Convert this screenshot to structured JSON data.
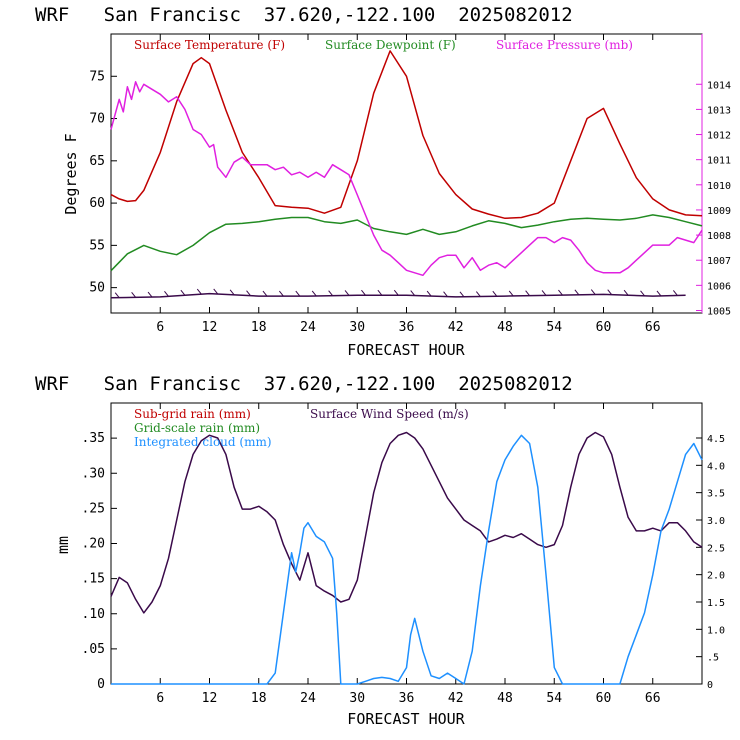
{
  "charts": [
    {
      "title": "WRF   San Francisc  37.620,-122.100  2025082012",
      "xlabel": "FORECAST HOUR",
      "ylabel": "Degrees F",
      "legend": [
        {
          "label": "Surface Temperature (F)",
          "color": "#c00000"
        },
        {
          "label": "Surface Dewpoint (F)",
          "color": "#228b22"
        },
        {
          "label": "Surface Pressure (mb)",
          "color": "#e020e0"
        }
      ]
    },
    {
      "title": "WRF   San Francisc  37.620,-122.100  2025082012",
      "xlabel": "FORECAST HOUR",
      "ylabel": "mm",
      "legend": [
        {
          "label": "Sub-grid rain (mm)",
          "color": "#c00000"
        },
        {
          "label": "Surface Wind Speed (m/s)",
          "color": "#3a0a4a"
        },
        {
          "label": "Grid-scale rain (mm)",
          "color": "#228b22"
        },
        {
          "label": "Integrated cloud (mm)",
          "color": "#1e90ff"
        }
      ]
    }
  ],
  "chart_data": [
    {
      "type": "line",
      "xlim": [
        0,
        72
      ],
      "ylim": [
        47,
        80
      ],
      "y2lim": [
        1004.9,
        1016
      ],
      "x_ticks": [
        6,
        12,
        18,
        24,
        30,
        36,
        42,
        48,
        54,
        60,
        66
      ],
      "y_ticks": [
        50,
        55,
        60,
        65,
        70,
        75
      ],
      "y2_ticks": [
        1005,
        1006,
        1007,
        1008,
        1009,
        1010,
        1011,
        1012,
        1013,
        1014
      ],
      "series": [
        {
          "name": "Surface Temperature (F)",
          "color": "#c00000",
          "axis": "left",
          "x": [
            0,
            1,
            2,
            3,
            4,
            6,
            8,
            10,
            11,
            12,
            14,
            16,
            18,
            20,
            22,
            24,
            26,
            28,
            30,
            32,
            34,
            36,
            38,
            40,
            42,
            44,
            46,
            48,
            50,
            52,
            54,
            56,
            58,
            60,
            62,
            64,
            66,
            68,
            70,
            72
          ],
          "y": [
            61,
            60.5,
            60.2,
            60.3,
            61.5,
            66,
            72,
            76.5,
            77.2,
            76.5,
            71,
            66,
            63,
            59.7,
            59.5,
            59.4,
            58.8,
            59.5,
            65,
            73,
            78,
            75,
            68,
            63.5,
            61,
            59.3,
            58.7,
            58.2,
            58.3,
            58.8,
            60,
            65,
            70,
            71.2,
            67,
            63,
            60.5,
            59.2,
            58.6,
            58.5
          ]
        },
        {
          "name": "Surface Dewpoint (F)",
          "color": "#228b22",
          "axis": "left",
          "x": [
            0,
            2,
            4,
            6,
            8,
            10,
            12,
            14,
            16,
            18,
            20,
            22,
            24,
            26,
            28,
            30,
            32,
            34,
            36,
            38,
            40,
            42,
            44,
            46,
            48,
            50,
            52,
            54,
            56,
            58,
            60,
            62,
            64,
            66,
            68,
            70,
            72
          ],
          "y": [
            52,
            54,
            55,
            54.3,
            53.9,
            55,
            56.5,
            57.5,
            57.6,
            57.8,
            58.1,
            58.3,
            58.3,
            57.8,
            57.6,
            58,
            57,
            56.6,
            56.3,
            56.9,
            56.3,
            56.6,
            57.3,
            57.9,
            57.6,
            57.1,
            57.4,
            57.8,
            58.1,
            58.2,
            58.1,
            58.0,
            58.2,
            58.6,
            58.3,
            57.8,
            57.3
          ]
        },
        {
          "name": "Surface Pressure (mb)",
          "color": "#e020e0",
          "axis": "right",
          "x": [
            0,
            0.5,
            1,
            1.5,
            2,
            2.5,
            3,
            3.5,
            4,
            5,
            6,
            7,
            8,
            9,
            10,
            11,
            12,
            12.5,
            13,
            14,
            15,
            16,
            17,
            18,
            19,
            20,
            21,
            22,
            23,
            24,
            25,
            26,
            27,
            28,
            29,
            30,
            31,
            32,
            33,
            34,
            35,
            36,
            37,
            38,
            39,
            40,
            41,
            42,
            43,
            44,
            45,
            46,
            47,
            48,
            49,
            50,
            51,
            52,
            53,
            54,
            55,
            56,
            57,
            58,
            59,
            60,
            61,
            62,
            63,
            64,
            65,
            66,
            67,
            68,
            69,
            70,
            71,
            72
          ],
          "y": [
            1012.2,
            1012.8,
            1013.4,
            1012.9,
            1013.9,
            1013.4,
            1014.1,
            1013.7,
            1014.0,
            1013.8,
            1013.6,
            1013.3,
            1013.5,
            1013.0,
            1012.2,
            1012.0,
            1011.5,
            1011.6,
            1010.7,
            1010.3,
            1010.9,
            1011.1,
            1010.8,
            1010.8,
            1010.8,
            1010.6,
            1010.7,
            1010.4,
            1010.5,
            1010.3,
            1010.5,
            1010.3,
            1010.8,
            1010.6,
            1010.4,
            1009.6,
            1008.8,
            1008.0,
            1007.4,
            1007.2,
            1006.9,
            1006.6,
            1006.5,
            1006.4,
            1006.8,
            1007.1,
            1007.2,
            1007.2,
            1006.7,
            1007.1,
            1006.6,
            1006.8,
            1006.9,
            1006.7,
            1007.0,
            1007.3,
            1007.6,
            1007.9,
            1007.9,
            1007.7,
            1007.9,
            1007.8,
            1007.4,
            1006.9,
            1006.6,
            1006.5,
            1006.5,
            1006.5,
            1006.7,
            1007.0,
            1007.3,
            1007.6,
            1007.6,
            1007.6,
            1007.9,
            1007.8,
            1007.7,
            1008.2
          ]
        },
        {
          "name": "",
          "color": "#3a0a4a",
          "axis": "left",
          "style": "wind-barbs",
          "x": [
            0,
            6,
            12,
            18,
            24,
            30,
            36,
            42,
            48,
            54,
            60,
            66,
            70
          ],
          "y": [
            48.8,
            48.9,
            49.3,
            49.0,
            49.0,
            49.1,
            49.1,
            48.9,
            49.0,
            49.1,
            49.2,
            49.0,
            49.1
          ]
        }
      ]
    },
    {
      "type": "line",
      "xlim": [
        0,
        72
      ],
      "ylim": [
        0,
        0.4
      ],
      "y2lim": [
        0,
        5.14
      ],
      "x_ticks": [
        6,
        12,
        18,
        24,
        30,
        36,
        42,
        48,
        54,
        60,
        66
      ],
      "y_ticks": [
        0,
        0.05,
        0.1,
        0.15,
        0.2,
        0.25,
        0.3,
        0.35
      ],
      "y_tick_labels": [
        "0",
        ".05",
        ".10",
        ".15",
        ".20",
        ".25",
        ".30",
        ".35"
      ],
      "y2_ticks": [
        0,
        0.5,
        1.0,
        1.5,
        2.0,
        2.5,
        3.0,
        3.5,
        4.0,
        4.5
      ],
      "y2_tick_labels": [
        "0",
        ".5",
        "1.0",
        "1.5",
        "2.0",
        "2.5",
        "3.0",
        "3.5",
        "4.0",
        "4.5"
      ],
      "series": [
        {
          "name": "Surface Wind Speed (m/s)",
          "color": "#3a0a4a",
          "axis": "right",
          "x": [
            0,
            1,
            1.5,
            2,
            3,
            4,
            5,
            6,
            7,
            8,
            9,
            10,
            11,
            12,
            13,
            14,
            15,
            16,
            17,
            18,
            19,
            20,
            21,
            22,
            23,
            24,
            25,
            26,
            27,
            28,
            29,
            30,
            31,
            32,
            33,
            34,
            35,
            36,
            37,
            38,
            39,
            40,
            41,
            42,
            43,
            44,
            45,
            46,
            47,
            48,
            49,
            50,
            51,
            52,
            53,
            54,
            55,
            56,
            57,
            58,
            59,
            60,
            61,
            62,
            63,
            64,
            65,
            66,
            67,
            68,
            69,
            70,
            71,
            72
          ],
          "y": [
            1.6,
            1.95,
            1.9,
            1.85,
            1.55,
            1.3,
            1.5,
            1.8,
            2.3,
            3.0,
            3.7,
            4.2,
            4.45,
            4.55,
            4.5,
            4.2,
            3.6,
            3.2,
            3.2,
            3.25,
            3.15,
            3.0,
            2.55,
            2.2,
            1.9,
            2.4,
            1.8,
            1.7,
            1.62,
            1.5,
            1.55,
            1.9,
            2.7,
            3.5,
            4.05,
            4.4,
            4.55,
            4.6,
            4.5,
            4.3,
            4.0,
            3.7,
            3.4,
            3.2,
            3.0,
            2.9,
            2.8,
            2.6,
            2.65,
            2.72,
            2.68,
            2.75,
            2.65,
            2.55,
            2.5,
            2.55,
            2.9,
            3.6,
            4.2,
            4.5,
            4.6,
            4.52,
            4.2,
            3.6,
            3.05,
            2.8,
            2.8,
            2.85,
            2.8,
            2.95,
            2.95,
            2.8,
            2.6,
            2.5
          ]
        },
        {
          "name": "Integrated cloud (mm)",
          "color": "#1e90ff",
          "axis": "right",
          "x": [
            0,
            19,
            20,
            21,
            22,
            22.5,
            23,
            23.5,
            24,
            25,
            26,
            27,
            27.5,
            28,
            29,
            30,
            31,
            32,
            33,
            34,
            35,
            36,
            36.5,
            37,
            38,
            39,
            40,
            41,
            42,
            43,
            44,
            45,
            46,
            47,
            48,
            49,
            50,
            51,
            52,
            53,
            54,
            55,
            62,
            63,
            64,
            65,
            66,
            67,
            68,
            69,
            70,
            71,
            72
          ],
          "y": [
            0,
            0,
            0.2,
            1.3,
            2.4,
            2.05,
            2.4,
            2.85,
            2.95,
            2.7,
            2.6,
            2.3,
            1.3,
            0,
            0,
            0,
            0.05,
            0.1,
            0.12,
            0.1,
            0.05,
            0.3,
            0.9,
            1.2,
            0.6,
            0.15,
            0.1,
            0.2,
            0.1,
            0,
            0.6,
            1.8,
            2.8,
            3.7,
            4.1,
            4.35,
            4.55,
            4.4,
            3.6,
            2.0,
            0.3,
            0,
            0,
            0.5,
            0.9,
            1.3,
            2.0,
            2.8,
            3.2,
            3.7,
            4.2,
            4.4,
            4.1
          ]
        }
      ]
    }
  ]
}
